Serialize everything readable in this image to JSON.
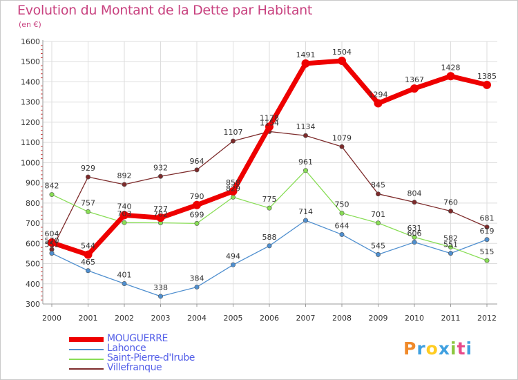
{
  "chart_data": {
    "type": "line",
    "title": "Evolution du Montant de la Dette par Habitant",
    "subtitle": "(en €)",
    "xlabel": "",
    "ylabel": "",
    "categories": [
      "2000",
      "2001",
      "2002",
      "2003",
      "2004",
      "2005",
      "2006",
      "2007",
      "2008",
      "2009",
      "2010",
      "2011",
      "2012"
    ],
    "y_ticks": [
      "300",
      "400",
      "500",
      "600",
      "700",
      "800",
      "900",
      "1000",
      "1100",
      "1200",
      "1300",
      "1400",
      "1500",
      "1600"
    ],
    "ylim": [
      300,
      1600
    ],
    "grid": true,
    "legend_position": "bottom-left",
    "series": [
      {
        "name": "MOUGUERRE",
        "color": "#ee0000",
        "values": [
          604,
          544,
          740,
          727,
          790,
          858,
          1178,
          1491,
          1504,
          1294,
          1367,
          1428,
          1385
        ],
        "labels": [
          "604",
          "544",
          "740",
          "727",
          "790",
          "858",
          "1178",
          "1491",
          "1504",
          "1294",
          "1367",
          "1428",
          "1385"
        ]
      },
      {
        "name": "Lahonce",
        "color": "#4f8fcf",
        "values": [
          551,
          465,
          401,
          338,
          384,
          494,
          588,
          714,
          644,
          545,
          606,
          551,
          619
        ],
        "labels": [
          "551",
          "465",
          "401",
          "338",
          "384",
          "494",
          "588",
          "714",
          "644",
          "545",
          "606",
          "551",
          "619"
        ]
      },
      {
        "name": "Saint-Pierre-d'Irube",
        "color": "#88dd55",
        "values": [
          842,
          757,
          703,
          702,
          699,
          829,
          775,
          961,
          750,
          701,
          631,
          582,
          515
        ],
        "labels": [
          "842",
          "757",
          "703",
          "702",
          "699",
          "829",
          "775",
          "961",
          "750",
          "701",
          "631",
          "582",
          "515"
        ]
      },
      {
        "name": "Villefranque",
        "color": "#7d2b2b",
        "values": [
          570,
          929,
          892,
          932,
          964,
          1107,
          1154,
          1134,
          1079,
          845,
          804,
          760,
          681
        ],
        "labels": [
          "570",
          "929",
          "892",
          "932",
          "964",
          "1107",
          "1154",
          "1134",
          "1079",
          "845",
          "804",
          "760",
          "681"
        ]
      }
    ]
  },
  "brand": {
    "text": "Proxiti",
    "colors": [
      "#f08a2a",
      "#3fa0e0",
      "#ffcc22",
      "#3fa0e0",
      "#8cc63f",
      "#e84a8a",
      "#3fa0e0"
    ]
  }
}
